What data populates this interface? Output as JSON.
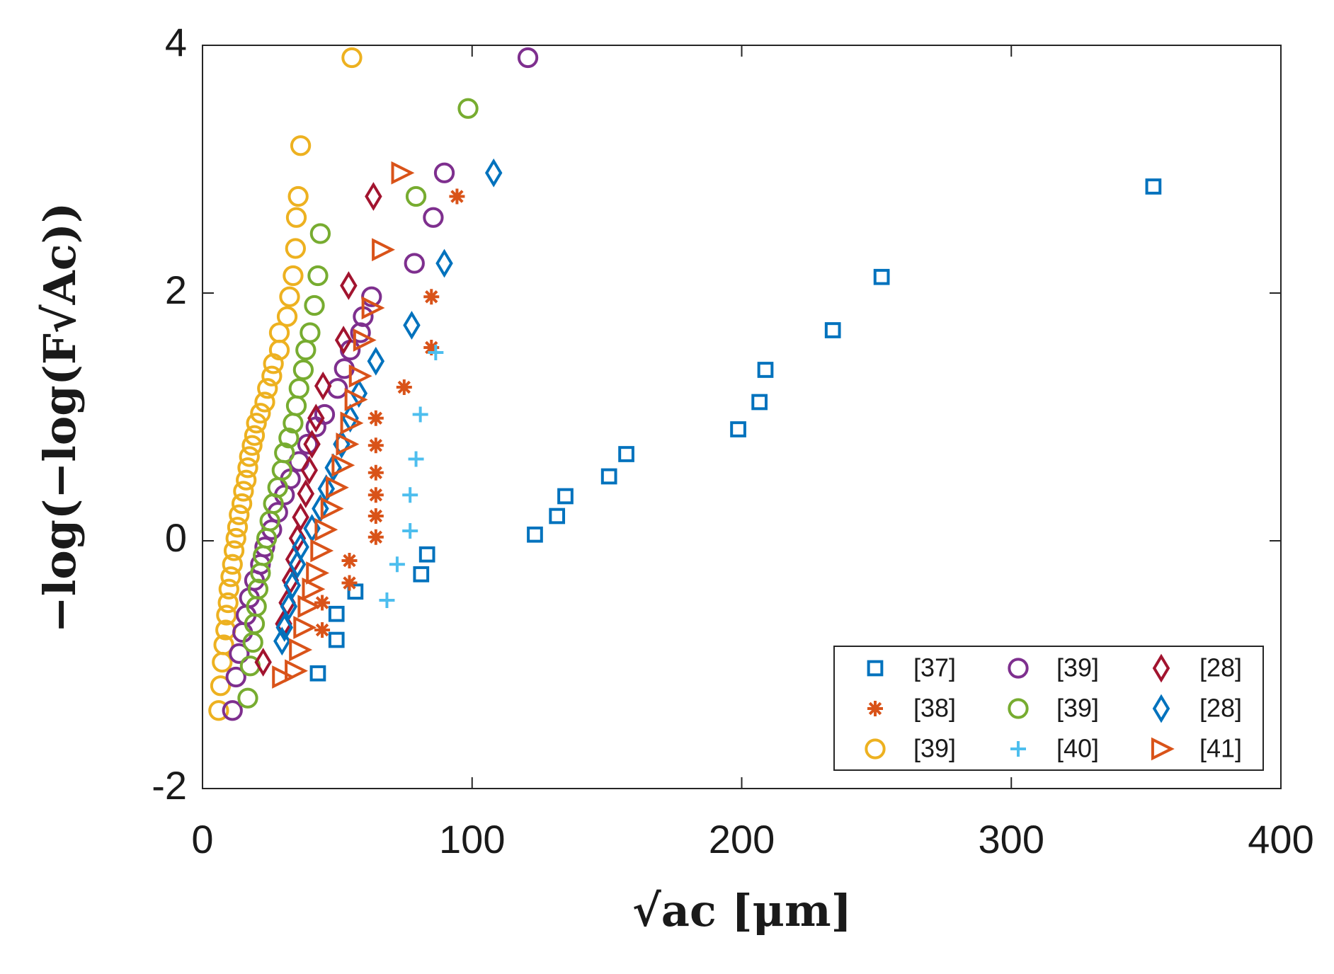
{
  "chart_data": {
    "type": "scatter",
    "x_label": "√ac [μm]",
    "y_label": "−log(−log(F√Ac))",
    "xlim": [
      0,
      400
    ],
    "xticks": [
      0,
      100,
      200,
      300,
      400
    ],
    "ylim": [
      -2,
      4
    ],
    "yticks": [
      -2,
      0,
      2,
      4
    ],
    "legend": "lower right",
    "series": [
      {
        "name": "[37]",
        "color": "#0072BD",
        "marker": "square",
        "x": [
          352.7,
          251.9,
          233.8,
          208.8,
          206.6,
          198.7,
          157.2,
          150.8,
          134.6,
          131.5,
          123.3,
          83.3,
          81.1,
          56.7,
          49.7,
          49.7,
          42.8
        ],
        "values": [
          2.86,
          2.13,
          1.7,
          1.38,
          1.12,
          0.9,
          0.7,
          0.52,
          0.36,
          0.2,
          0.05,
          -0.11,
          -0.27,
          -0.41,
          -0.59,
          -0.8,
          -1.07
        ]
      },
      {
        "name": "[38]",
        "color": "#D95319",
        "marker": "asterisk",
        "x": [
          94.4,
          84.9,
          84.9,
          74.8,
          64.3,
          64.3,
          64.3,
          64.3,
          64.3,
          64.3,
          54.5,
          54.5,
          44.4,
          44.4
        ],
        "values": [
          2.78,
          1.97,
          1.56,
          1.24,
          0.99,
          0.77,
          0.55,
          0.37,
          0.2,
          0.03,
          -0.16,
          -0.34,
          -0.5,
          -0.72
        ]
      },
      {
        "name": "[39]",
        "color": "#EDB120",
        "marker": "circle",
        "x": [
          55.4,
          36.4,
          35.5,
          34.8,
          34.5,
          33.6,
          32.3,
          31.4,
          28.5,
          28.5,
          26.3,
          25.7,
          24.1,
          23.1,
          21.5,
          20.0,
          19.3,
          18.4,
          17.4,
          16.8,
          16.2,
          15.2,
          14.6,
          13.6,
          13.0,
          12.4,
          11.7,
          11.1,
          10.5,
          9.8,
          9.5,
          8.9,
          8.6,
          7.9,
          7.3,
          6.7,
          6.0
        ],
        "values": [
          3.9,
          3.19,
          2.78,
          2.61,
          2.36,
          2.14,
          1.97,
          1.81,
          1.68,
          1.54,
          1.43,
          1.33,
          1.23,
          1.12,
          1.03,
          0.95,
          0.85,
          0.77,
          0.68,
          0.59,
          0.49,
          0.4,
          0.3,
          0.21,
          0.11,
          0.02,
          -0.08,
          -0.19,
          -0.29,
          -0.39,
          -0.5,
          -0.6,
          -0.72,
          -0.84,
          -0.98,
          -1.17,
          -1.37
        ]
      },
      {
        "name": "[39]",
        "color": "#7E2F8E",
        "marker": "circle",
        "x": [
          120.7,
          89.7,
          85.6,
          78.6,
          62.7,
          59.6,
          58.6,
          54.8,
          52.6,
          50.1,
          45.3,
          42.1,
          39.0,
          35.8,
          32.6,
          30.4,
          27.9,
          25.7,
          23.1,
          21.5,
          19.3,
          17.4,
          16.2,
          14.9,
          13.6,
          12.4,
          11.1
        ],
        "values": [
          3.9,
          2.97,
          2.61,
          2.24,
          1.97,
          1.81,
          1.68,
          1.54,
          1.39,
          1.23,
          1.02,
          0.92,
          0.78,
          0.64,
          0.5,
          0.37,
          0.23,
          0.09,
          -0.05,
          -0.19,
          -0.32,
          -0.46,
          -0.6,
          -0.74,
          -0.91,
          -1.1,
          -1.37
        ]
      },
      {
        "name": "[39]",
        "color": "#77AC30",
        "marker": "circle",
        "x": [
          98.5,
          79.2,
          43.7,
          42.8,
          41.5,
          39.9,
          38.3,
          37.4,
          35.8,
          34.8,
          33.6,
          32.0,
          30.4,
          29.5,
          27.9,
          26.3,
          25.0,
          23.8,
          22.5,
          21.5,
          20.6,
          20.0,
          19.3,
          18.7,
          17.7,
          16.8
        ],
        "values": [
          3.49,
          2.78,
          2.48,
          2.14,
          1.9,
          1.68,
          1.54,
          1.38,
          1.23,
          1.09,
          0.95,
          0.83,
          0.71,
          0.57,
          0.43,
          0.3,
          0.16,
          0.02,
          -0.12,
          -0.26,
          -0.39,
          -0.53,
          -0.67,
          -0.82,
          -1.01,
          -1.27
        ]
      },
      {
        "name": "[40]",
        "color": "#4DBEEE",
        "marker": "plus",
        "x": [
          86.5,
          80.8,
          79.2,
          77.0,
          77.0,
          72.2,
          68.4
        ],
        "values": [
          1.52,
          1.02,
          0.66,
          0.37,
          0.08,
          -0.19,
          -0.48
        ]
      },
      {
        "name": "[28]",
        "color": "#A2142F",
        "marker": "diamond",
        "x": [
          63.4,
          54.2,
          52.3,
          44.7,
          42.1,
          40.6,
          39.6,
          38.3,
          36.4,
          35.2,
          33.9,
          32.6,
          31.4,
          30.1,
          22.5
        ],
        "values": [
          2.78,
          2.06,
          1.62,
          1.25,
          0.99,
          0.78,
          0.57,
          0.38,
          0.19,
          0.02,
          -0.15,
          -0.32,
          -0.5,
          -0.67,
          -0.98
        ]
      },
      {
        "name": "[28]",
        "color": "#0072BD",
        "marker": "diamond",
        "x": [
          108.0,
          89.7,
          77.6,
          64.3,
          58.0,
          54.8,
          51.6,
          48.5,
          45.9,
          43.7,
          40.6,
          36.4,
          35.2,
          33.3,
          32.0,
          30.4,
          29.5
        ],
        "values": [
          2.97,
          2.24,
          1.74,
          1.45,
          1.19,
          0.99,
          0.78,
          0.59,
          0.42,
          0.26,
          0.1,
          -0.05,
          -0.19,
          -0.36,
          -0.53,
          -0.7,
          -0.81
        ]
      },
      {
        "name": "[41]",
        "color": "#D95319",
        "marker": "triangle-right",
        "x": [
          73.7,
          66.5,
          62.7,
          59.6,
          58.0,
          56.4,
          54.8,
          53.2,
          51.6,
          49.4,
          47.5,
          45.3,
          43.7,
          42.1,
          40.6,
          39.0,
          37.4,
          35.8,
          34.2,
          29.5
        ],
        "values": [
          2.97,
          2.35,
          1.88,
          1.62,
          1.33,
          1.14,
          0.95,
          0.78,
          0.61,
          0.43,
          0.26,
          0.09,
          -0.08,
          -0.26,
          -0.39,
          -0.53,
          -0.7,
          -0.88,
          -1.05,
          -1.1
        ]
      }
    ]
  }
}
